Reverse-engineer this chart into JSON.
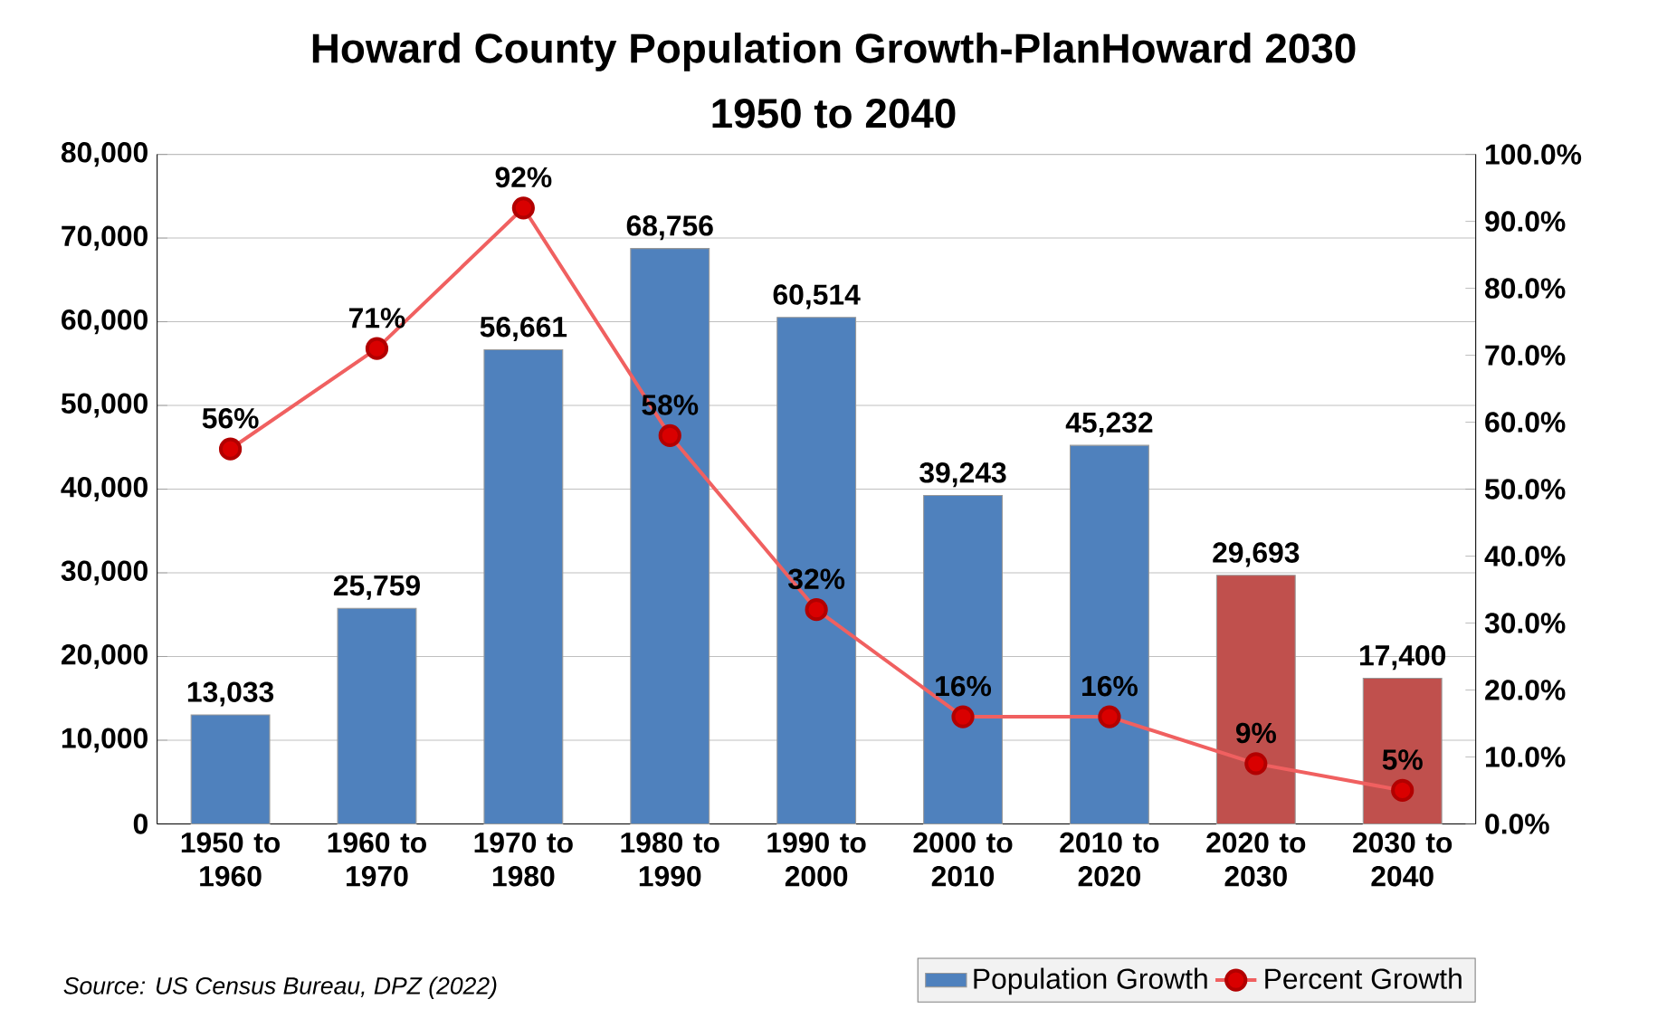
{
  "chart_data": {
    "type": "bar",
    "title": "Howard County Population Growth-PlanHoward 2030",
    "subtitle": "1950 to 2040",
    "categories": [
      "1950 to 1960",
      "1960 to 1970",
      "1970 to 1980",
      "1980 to 1990",
      "1990 to 2000",
      "2000 to 2010",
      "2010 to 2020",
      "2020 to 2030",
      "2030 to 2040"
    ],
    "series": [
      {
        "name": "Population Growth",
        "color": "#4f81bd",
        "colors": [
          "#4f81bd",
          "#4f81bd",
          "#4f81bd",
          "#4f81bd",
          "#4f81bd",
          "#4f81bd",
          "#4f81bd",
          "#c0504d",
          "#c0504d"
        ],
        "values": [
          13033,
          25759,
          56661,
          68756,
          60514,
          39243,
          45232,
          29693,
          17400
        ],
        "value_labels": [
          "13,033",
          "25,759",
          "56,661",
          "68,756",
          "60,514",
          "39,243",
          "45,232",
          "29,693",
          "17,400"
        ]
      },
      {
        "type": "line",
        "name": "Percent Growth",
        "axis": "y2",
        "color": "#f06060",
        "marker": "circle",
        "values": [
          56,
          71,
          92,
          58,
          32,
          16,
          16,
          9,
          5
        ],
        "value_labels": [
          "56%",
          "71%",
          "92%",
          "58%",
          "32%",
          "16%",
          "16%",
          "9%",
          "5%"
        ]
      }
    ],
    "ylim": [
      0,
      80000
    ],
    "yticks": [
      0,
      {
        "value": 10000,
        "label": "10,000"
      },
      {
        "value": 20000,
        "label": "20,000"
      },
      {
        "value": 30000,
        "label": "30,000"
      },
      {
        "value": 40000,
        "label": "40,000"
      },
      {
        "value": 50000,
        "label": "50,000"
      },
      {
        "value": 60000,
        "label": "60,000"
      },
      {
        "value": 70000,
        "label": "70,000"
      },
      {
        "value": 80000,
        "label": "80,000"
      }
    ],
    "y2lim": [
      0,
      100
    ],
    "y2ticks": [
      {
        "value": 0,
        "label": "0.0%"
      },
      {
        "value": 10,
        "label": "10.0%"
      },
      {
        "value": 20,
        "label": "20.0%"
      },
      {
        "value": 30,
        "label": "30.0%"
      },
      {
        "value": 40,
        "label": "40.0%"
      },
      {
        "value": 50,
        "label": "50.0%"
      },
      {
        "value": 60,
        "label": "60.0%"
      },
      {
        "value": 70,
        "label": "70.0%"
      },
      {
        "value": 80,
        "label": "80.0%"
      },
      {
        "value": 90,
        "label": "90.0%"
      },
      {
        "value": 100,
        "label": "100.0%"
      }
    ],
    "grid": "y",
    "legend": "bottom right",
    "annotations": [
      "Source:  US Census Bureau, DPZ (2022)"
    ]
  }
}
